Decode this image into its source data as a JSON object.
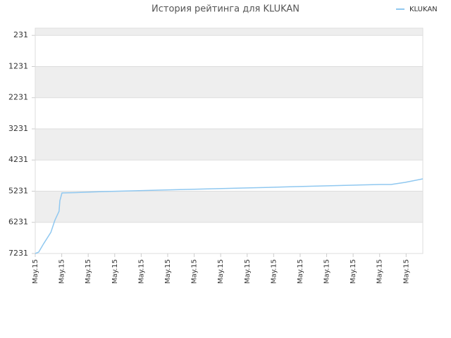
{
  "chart_data": {
    "type": "line",
    "title": "История рейтинга для KLUKAN",
    "x": [
      0,
      0.13,
      0.32,
      0.59,
      0.74,
      0.9,
      0.93,
      1.01,
      1.54,
      2.61,
      3.67,
      4.65,
      5.72,
      6.78,
      7.85,
      8.91,
      9.84,
      10.9,
      11.97,
      13.03,
      13.43,
      13.96,
      14.63
    ],
    "series": [
      {
        "name": "KLUKAN",
        "color": "#90c8f0",
        "values": [
          7231,
          7186,
          6913,
          6552,
          6168,
          5875,
          5536,
          5287,
          5276,
          5242,
          5220,
          5197,
          5175,
          5152,
          5130,
          5107,
          5084,
          5062,
          5039,
          5017,
          5017,
          4949,
          4836
        ]
      }
    ],
    "xlim": [
      0,
      14.63
    ],
    "xticks": [
      {
        "value": 0,
        "label": "May.15"
      },
      {
        "value": 1,
        "label": "May.15"
      },
      {
        "value": 2,
        "label": "May.15"
      },
      {
        "value": 3,
        "label": "May.15"
      },
      {
        "value": 4,
        "label": "May.15"
      },
      {
        "value": 5,
        "label": "May.15"
      },
      {
        "value": 6,
        "label": "May.15"
      },
      {
        "value": 7,
        "label": "May.15"
      },
      {
        "value": 8,
        "label": "May.15"
      },
      {
        "value": 9,
        "label": "May.15"
      },
      {
        "value": 10,
        "label": "May.15"
      },
      {
        "value": 11,
        "label": "May.15"
      },
      {
        "value": 12,
        "label": "May.15"
      },
      {
        "value": 13,
        "label": "May.15"
      },
      {
        "value": 14,
        "label": "May.15"
      }
    ],
    "ylim": [
      7231,
      0
    ],
    "yticks": [
      231,
      1231,
      2231,
      3231,
      4231,
      5231,
      6231,
      7231
    ],
    "grid": true,
    "legend": "top-right"
  }
}
